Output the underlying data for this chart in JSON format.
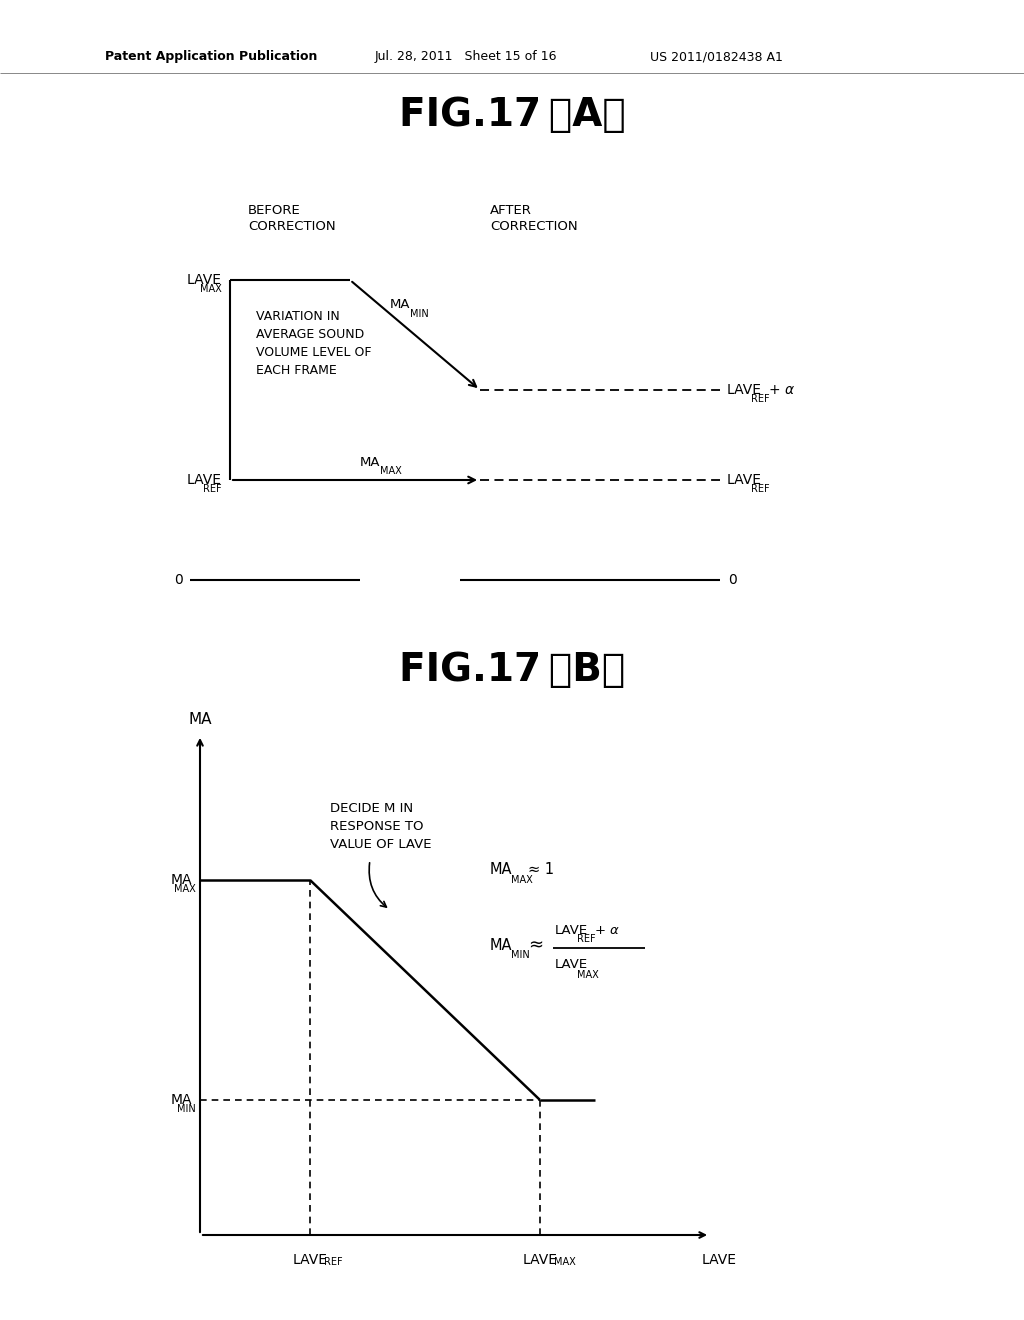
{
  "header_text": "Patent Application Publication",
  "header_date": "Jul. 28, 2011   Sheet 15 of 16",
  "header_patent": "US 2011/0182438 A1",
  "fig_a_title": "FIG.17（A）",
  "fig_b_title": "FIG.17（B）",
  "background_color": "#ffffff",
  "text_color": "#000000",
  "line_color": "#000000"
}
